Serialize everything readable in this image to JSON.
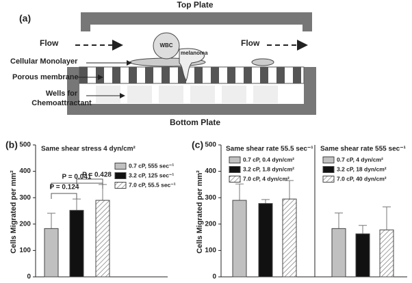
{
  "diagram": {
    "label": "(a)",
    "top_plate": "Top Plate",
    "bottom_plate": "Bottom Plate",
    "flow_left": "Flow",
    "flow_right": "Flow",
    "wbc": "WBC",
    "melanoma": "melanoma",
    "monolayer": "Cellular Monolayer",
    "membrane": "Porous membrane",
    "wells": [
      "Wells for",
      "Chemoattractant"
    ]
  },
  "chart_data": [
    {
      "type": "bar",
      "label": "(b)",
      "title": "Same shear stress 4 dyn/cm²",
      "ylabel": "Cells Migrated per mm²",
      "ylim": [
        0,
        500
      ],
      "yticks": [
        0,
        100,
        200,
        300,
        400,
        500
      ],
      "series": [
        {
          "name": "0.7 cP, 555 sec⁻¹",
          "color": "#c0c0c0",
          "values": [
            183
          ],
          "errors": [
            58
          ]
        },
        {
          "name": "3.2 cP, 125 sec⁻¹",
          "color": "#111111",
          "values": [
            252
          ],
          "errors": [
            43
          ]
        },
        {
          "name": "7.0 cP, 55.5 sec⁻¹",
          "color": "hatch",
          "values": [
            290
          ],
          "errors": [
            60
          ]
        }
      ],
      "annotations": [
        "P = 0.041",
        "P = 0.124",
        "P = 0.428"
      ]
    },
    {
      "type": "grouped-panels",
      "label": "(c)",
      "ylabel": "Cells Migrated per mm²",
      "ylim": [
        0,
        500
      ],
      "yticks": [
        0,
        100,
        200,
        300,
        400,
        500
      ],
      "panels": [
        {
          "title": "Same shear rate 55.5 sec⁻¹",
          "series": [
            {
              "name": "0.7 cP, 0.4 dyn/cm²",
              "color": "#c0c0c0",
              "values": [
                290
              ],
              "errors": [
                62
              ]
            },
            {
              "name": "3.2 cP, 1.8 dyn/cm²",
              "color": "#111111",
              "values": [
                278
              ],
              "errors": [
                15
              ]
            },
            {
              "name": "7.0 cP, 4 dyn/cm²",
              "color": "hatch",
              "values": [
                295
              ],
              "errors": [
                70
              ]
            }
          ]
        },
        {
          "title": "Same shear rate 555 sec⁻¹",
          "series": [
            {
              "name": "0.7 cP, 4 dyn/cm²",
              "color": "#c0c0c0",
              "values": [
                183
              ],
              "errors": [
                59
              ]
            },
            {
              "name": "3.2 cP, 18 dyn/cm²",
              "color": "#111111",
              "values": [
                163
              ],
              "errors": [
                32
              ]
            },
            {
              "name": "7.0 cP, 40 dyn/cm²",
              "color": "hatch",
              "values": [
                178
              ],
              "errors": [
                87
              ]
            }
          ]
        }
      ]
    }
  ]
}
